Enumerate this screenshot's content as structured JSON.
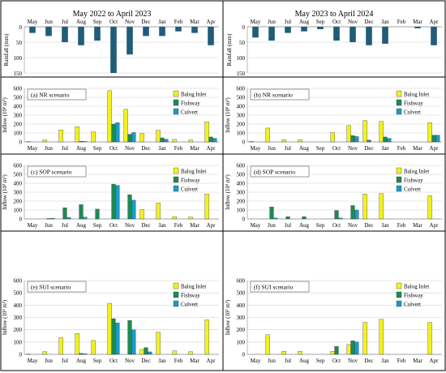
{
  "colors": {
    "balog": "#f2f21a",
    "fishway": "#1e8a52",
    "culvert": "#1a9bc9",
    "rainfall": "#1f5d78",
    "grid": "#d0d0d0",
    "frame": "#000000"
  },
  "months": [
    "May",
    "Jun",
    "Jul",
    "Aug",
    "Sep",
    "Oct",
    "Nov",
    "Dec",
    "Jan",
    "Feb",
    "Mar",
    "Apr"
  ],
  "columns": [
    {
      "header": "May 2022 to April 2023"
    },
    {
      "header": "May 2023 to April 2024"
    }
  ],
  "legend_labels": [
    "Balog Inlet",
    "Fishway",
    "Culvert"
  ],
  "chart_data": [
    {
      "type": "bar",
      "panel": "rainfall-2022-2023",
      "ylabel": "Rainfall (mm)",
      "yticks": [
        "0",
        "50",
        "100",
        "150"
      ],
      "ylim": [
        0,
        150
      ],
      "inverted": true,
      "categories": [
        "May",
        "Jun",
        "Jul",
        "Aug",
        "Sep",
        "Oct",
        "Nov",
        "Dec",
        "Jan",
        "Feb",
        "Mar",
        "Apr"
      ],
      "values": [
        20,
        30,
        50,
        60,
        45,
        150,
        90,
        30,
        30,
        15,
        20,
        60
      ]
    },
    {
      "type": "bar",
      "panel": "rainfall-2023-2024",
      "ylabel": "Rainfall (mm)",
      "yticks": [
        "0",
        "50",
        "100",
        "150"
      ],
      "ylim": [
        0,
        150
      ],
      "inverted": true,
      "categories": [
        "May",
        "Jun",
        "Jul",
        "Aug",
        "Sep",
        "Oct",
        "Nov",
        "Dec",
        "Jan",
        "Feb",
        "Mar",
        "Apr"
      ],
      "values": [
        35,
        45,
        20,
        15,
        8,
        45,
        50,
        60,
        55,
        0,
        5,
        60
      ]
    },
    {
      "type": "bar",
      "panel": "nr-2022-2023",
      "title": "(a) NR scenario",
      "ylabel": "Inflow (10³ m³)",
      "yticks": [
        "0",
        "100",
        "200",
        "300",
        "400",
        "500",
        "600"
      ],
      "ylim": [
        0,
        600
      ],
      "categories": [
        "May",
        "Jun",
        "Jul",
        "Aug",
        "Sep",
        "Oct",
        "Nov",
        "Dec",
        "Jan",
        "Feb",
        "Mar",
        "Apr"
      ],
      "series": [
        {
          "name": "Balog Inlet",
          "values": [
            2,
            22,
            135,
            170,
            113,
            575,
            365,
            95,
            130,
            28,
            22,
            225
          ]
        },
        {
          "name": "Fishway",
          "values": [
            0,
            0,
            0,
            8,
            0,
            200,
            85,
            0,
            45,
            0,
            0,
            55
          ]
        },
        {
          "name": "Culvert",
          "values": [
            0,
            0,
            0,
            5,
            0,
            215,
            105,
            0,
            30,
            0,
            0,
            40
          ]
        }
      ]
    },
    {
      "type": "bar",
      "panel": "nr-2023-2024",
      "title": "(b) NR scenario",
      "ylabel": "Inflow (10³ m³)",
      "yticks": [
        "0",
        "100",
        "200",
        "300",
        "400",
        "500",
        "600"
      ],
      "ylim": [
        0,
        600
      ],
      "categories": [
        "May",
        "Jun",
        "Jul",
        "Aug",
        "Sep",
        "Oct",
        "Nov",
        "Dec",
        "Jan",
        "Feb",
        "Mar",
        "Apr"
      ],
      "series": [
        {
          "name": "Balog Inlet",
          "values": [
            8,
            155,
            25,
            25,
            0,
            105,
            185,
            240,
            230,
            0,
            0,
            215
          ]
        },
        {
          "name": "Fishway",
          "values": [
            0,
            0,
            0,
            0,
            0,
            0,
            70,
            20,
            55,
            0,
            0,
            75
          ]
        },
        {
          "name": "Culvert",
          "values": [
            0,
            0,
            0,
            0,
            0,
            0,
            60,
            0,
            40,
            0,
            0,
            75
          ]
        }
      ]
    },
    {
      "type": "bar",
      "panel": "sop-2022-2023",
      "title": "(c) SOP scenario",
      "ylabel": "Inflow (10³ m³)",
      "yticks": [
        "0",
        "100",
        "200",
        "300",
        "400",
        "500",
        "600"
      ],
      "ylim": [
        0,
        600
      ],
      "categories": [
        "May",
        "Jun",
        "Jul",
        "Aug",
        "Sep",
        "Oct",
        "Nov",
        "Dec",
        "Jan",
        "Feb",
        "Mar",
        "Apr"
      ],
      "series": [
        {
          "name": "Balog Inlet",
          "values": [
            0,
            0,
            0,
            0,
            0,
            0,
            0,
            105,
            180,
            25,
            20,
            280
          ]
        },
        {
          "name": "Fishway",
          "values": [
            0,
            5,
            125,
            160,
            110,
            390,
            270,
            0,
            0,
            0,
            0,
            0
          ]
        },
        {
          "name": "Culvert",
          "values": [
            0,
            8,
            15,
            20,
            0,
            375,
            210,
            0,
            0,
            0,
            0,
            0
          ]
        }
      ]
    },
    {
      "type": "bar",
      "panel": "sop-2023-2024",
      "title": "(d) SOP scenario",
      "ylabel": "Inflow (10³ m³)",
      "yticks": [
        "0",
        "100",
        "200",
        "300",
        "400",
        "500",
        "600"
      ],
      "ylim": [
        0,
        600
      ],
      "categories": [
        "May",
        "Jun",
        "Jul",
        "Aug",
        "Sep",
        "Oct",
        "Nov",
        "Dec",
        "Jan",
        "Feb",
        "Mar",
        "Apr"
      ],
      "series": [
        {
          "name": "Balog Inlet",
          "values": [
            0,
            0,
            0,
            0,
            0,
            0,
            0,
            280,
            285,
            0,
            0,
            260
          ]
        },
        {
          "name": "Fishway",
          "values": [
            0,
            135,
            25,
            25,
            0,
            95,
            150,
            0,
            0,
            0,
            0,
            0
          ]
        },
        {
          "name": "Culvert",
          "values": [
            0,
            10,
            0,
            0,
            0,
            10,
            100,
            0,
            0,
            0,
            0,
            0
          ]
        }
      ]
    },
    {
      "type": "bar",
      "panel": "sui-2022-2023",
      "title": "(e) SUI scenario",
      "ylabel": "Inflow (10³ m³)",
      "yticks": [
        "0",
        "100",
        "200",
        "300",
        "400",
        "500",
        "600"
      ],
      "ylim": [
        0,
        600
      ],
      "categories": [
        "May",
        "Jun",
        "Jul",
        "Aug",
        "Sep",
        "Oct",
        "Nov",
        "Dec",
        "Jan",
        "Feb",
        "Mar",
        "Apr"
      ],
      "series": [
        {
          "name": "Balog Inlet",
          "values": [
            2,
            22,
            135,
            170,
            113,
            415,
            0,
            40,
            180,
            28,
            22,
            280
          ]
        },
        {
          "name": "Fishway",
          "values": [
            0,
            0,
            0,
            8,
            0,
            290,
            275,
            55,
            0,
            0,
            0,
            0
          ]
        },
        {
          "name": "Culvert",
          "values": [
            0,
            0,
            0,
            5,
            0,
            255,
            200,
            20,
            0,
            0,
            0,
            0
          ]
        }
      ]
    },
    {
      "type": "bar",
      "panel": "sui-2023-2024",
      "title": "(f) SUI scenario",
      "ylabel": "Inflow (10³ m³)",
      "yticks": [
        "0",
        "100",
        "200",
        "300",
        "400",
        "500",
        "600"
      ],
      "ylim": [
        0,
        600
      ],
      "categories": [
        "May",
        "Jun",
        "Jul",
        "Aug",
        "Sep",
        "Oct",
        "Nov",
        "Dec",
        "Jan",
        "Feb",
        "Mar",
        "Apr"
      ],
      "series": [
        {
          "name": "Balog Inlet",
          "values": [
            0,
            160,
            25,
            25,
            0,
            25,
            80,
            260,
            285,
            0,
            0,
            260
          ]
        },
        {
          "name": "Fishway",
          "values": [
            0,
            0,
            0,
            0,
            0,
            65,
            110,
            0,
            0,
            0,
            0,
            0
          ]
        },
        {
          "name": "Culvert",
          "values": [
            0,
            0,
            0,
            0,
            0,
            0,
            100,
            0,
            0,
            0,
            0,
            0
          ]
        }
      ]
    }
  ]
}
